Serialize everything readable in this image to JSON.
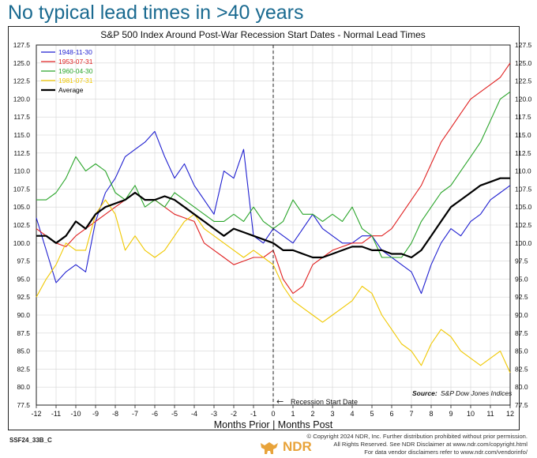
{
  "headline": "No typical lead times in >40 years",
  "footer": {
    "code": "SSF24_33B_C",
    "copyright_lines": [
      "© Copyright 2024 NDR, Inc. Further distribution prohibited without prior permission.",
      "All Rights Reserved. See NDR Disclaimer at www.ndr.com/copyright.html",
      "For data vendor disclaimers refer to www.ndr.com/vendorinfo/"
    ],
    "logo_text": "NDR"
  },
  "chart_data": {
    "type": "line",
    "title": "S&P 500 Index Around Post-War Recession Start Dates - Normal Lead Times",
    "xlabel": "Months Prior | Months Post",
    "ylabel": "",
    "xlim": [
      -12,
      12
    ],
    "ylim": [
      77.5,
      127.5
    ],
    "x_ticks": [
      -12,
      -11,
      -10,
      -9,
      -8,
      -7,
      -6,
      -5,
      -4,
      -3,
      -2,
      -1,
      0,
      1,
      2,
      3,
      4,
      5,
      6,
      7,
      8,
      9,
      10,
      11,
      12
    ],
    "y_ticks": [
      77.5,
      80.0,
      82.5,
      85.0,
      87.5,
      90.0,
      92.5,
      95.0,
      97.5,
      100.0,
      102.5,
      105.0,
      107.5,
      110.0,
      112.5,
      115.0,
      117.5,
      120.0,
      122.5,
      125.0,
      127.5
    ],
    "y_tick_labels": [
      "77.5",
      "80.0",
      "82.5",
      "85.0",
      "87.5",
      "90.0",
      "92.5",
      "95.0",
      "97.5",
      "100.0",
      "102.5",
      "105.0",
      "107.5",
      "110.0",
      "112.5",
      "115.0",
      "117.5",
      "120.0",
      "122.5",
      "125.0",
      "127.5"
    ],
    "grid": true,
    "legend_position": "top-left",
    "annotations": {
      "vertical_line_x": 0,
      "vertical_line_label": "Recession Start Date",
      "source_label": "Source:",
      "source_text": "S&P Dow Jones Indices"
    },
    "series": [
      {
        "name": "1948-11-30",
        "color": "#1f1fd0",
        "x": [
          -12,
          -11.5,
          -11,
          -10.5,
          -10,
          -9.5,
          -9,
          -8.5,
          -8,
          -7.5,
          -7,
          -6.5,
          -6,
          -5.5,
          -5,
          -4.5,
          -4,
          -3.5,
          -3,
          -2.5,
          -2,
          -1.5,
          -1,
          -0.5,
          0,
          0.5,
          1,
          1.5,
          2,
          2.5,
          3,
          3.5,
          4,
          4.5,
          5,
          5.5,
          6,
          6.5,
          7,
          7.5,
          8,
          8.5,
          9,
          9.5,
          10,
          10.5,
          11,
          11.5,
          12
        ],
        "values": [
          103.5,
          99,
          94.5,
          96,
          97,
          96,
          103,
          107,
          109,
          112,
          113,
          114,
          115.5,
          112,
          109,
          111,
          108,
          106,
          104,
          110,
          109,
          113,
          101,
          100,
          102,
          101,
          100,
          102,
          104,
          102,
          101,
          100,
          100,
          101,
          101,
          99,
          98,
          97,
          96,
          93,
          97,
          100,
          102,
          101,
          103,
          104,
          106,
          107,
          108
        ]
      },
      {
        "name": "1953-07-31",
        "color": "#e02020",
        "x": [
          -12,
          -11.5,
          -11,
          -10.5,
          -10,
          -9.5,
          -9,
          -8.5,
          -8,
          -7.5,
          -7,
          -6.5,
          -6,
          -5.5,
          -5,
          -4.5,
          -4,
          -3.5,
          -3,
          -2.5,
          -2,
          -1.5,
          -1,
          -0.5,
          0,
          0.5,
          1,
          1.5,
          2,
          2.5,
          3,
          3.5,
          4,
          4.5,
          5,
          5.5,
          6,
          6.5,
          7,
          7.5,
          8,
          8.5,
          9,
          9.5,
          10,
          10.5,
          11,
          11.5,
          12
        ],
        "values": [
          102,
          101,
          100,
          99.5,
          101,
          102,
          103,
          104,
          105,
          106,
          107,
          106,
          106,
          105,
          104,
          103.5,
          103,
          100,
          99,
          98,
          97,
          97.5,
          98,
          98,
          99,
          95,
          93,
          94,
          97,
          98,
          99,
          99.5,
          100,
          100,
          101,
          101,
          102,
          104,
          106,
          108,
          111,
          114,
          116,
          118,
          120,
          121,
          122,
          123,
          125
        ]
      },
      {
        "name": "1960-04-30",
        "color": "#2aa52a",
        "x": [
          -12,
          -11.5,
          -11,
          -10.5,
          -10,
          -9.5,
          -9,
          -8.5,
          -8,
          -7.5,
          -7,
          -6.5,
          -6,
          -5.5,
          -5,
          -4.5,
          -4,
          -3.5,
          -3,
          -2.5,
          -2,
          -1.5,
          -1,
          -0.5,
          0,
          0.5,
          1,
          1.5,
          2,
          2.5,
          3,
          3.5,
          4,
          4.5,
          5,
          5.5,
          6,
          6.5,
          7,
          7.5,
          8,
          8.5,
          9,
          9.5,
          10,
          10.5,
          11,
          11.5,
          12
        ],
        "values": [
          106,
          106,
          107,
          109,
          112,
          110,
          111,
          110,
          107,
          106,
          108,
          105,
          106,
          105,
          107,
          106,
          105,
          104,
          103,
          103,
          104,
          103,
          105,
          103,
          102,
          103,
          106,
          104,
          104,
          103,
          104,
          103,
          105,
          102,
          101,
          98,
          98,
          98,
          100,
          103,
          105,
          107,
          108,
          110,
          112,
          114,
          117,
          120,
          121
        ]
      },
      {
        "name": "1981-07-31",
        "color": "#f0c800",
        "x": [
          -12,
          -11.5,
          -11,
          -10.5,
          -10,
          -9.5,
          -9,
          -8.5,
          -8,
          -7.5,
          -7,
          -6.5,
          -6,
          -5.5,
          -5,
          -4.5,
          -4,
          -3.5,
          -3,
          -2.5,
          -2,
          -1.5,
          -1,
          -0.5,
          0,
          0.5,
          1,
          1.5,
          2,
          2.5,
          3,
          3.5,
          4,
          4.5,
          5,
          5.5,
          6,
          6.5,
          7,
          7.5,
          8,
          8.5,
          9,
          9.5,
          10,
          10.5,
          11,
          11.5,
          12
        ],
        "values": [
          92.5,
          95,
          97,
          100,
          99,
          99,
          104,
          106,
          104,
          99,
          101,
          99,
          98,
          99,
          101,
          103,
          104,
          102,
          101,
          100,
          99,
          98,
          99,
          98,
          97,
          94,
          92,
          91,
          90,
          89,
          90,
          91,
          92,
          94,
          93,
          90,
          88,
          86,
          85,
          83,
          86,
          88,
          87,
          85,
          84,
          83,
          84,
          85,
          82
        ]
      },
      {
        "name": "Average",
        "color": "#000000",
        "x": [
          -12,
          -11.5,
          -11,
          -10.5,
          -10,
          -9.5,
          -9,
          -8.5,
          -8,
          -7.5,
          -7,
          -6.5,
          -6,
          -5.5,
          -5,
          -4.5,
          -4,
          -3.5,
          -3,
          -2.5,
          -2,
          -1.5,
          -1,
          -0.5,
          0,
          0.5,
          1,
          1.5,
          2,
          2.5,
          3,
          3.5,
          4,
          4.5,
          5,
          5.5,
          6,
          6.5,
          7,
          7.5,
          8,
          8.5,
          9,
          9.5,
          10,
          10.5,
          11,
          11.5,
          12
        ],
        "values": [
          101,
          101,
          100,
          101,
          103,
          102,
          104,
          105,
          105.5,
          106,
          107,
          106,
          106,
          106.5,
          106,
          105,
          104,
          103,
          102,
          101,
          102,
          101.5,
          101,
          100.5,
          100,
          99,
          99,
          98.5,
          98,
          98,
          98.5,
          99,
          99.5,
          99.5,
          99,
          99,
          98.5,
          98.5,
          98,
          99,
          101,
          103,
          105,
          106,
          107,
          108,
          108.5,
          109,
          109
        ]
      }
    ]
  }
}
